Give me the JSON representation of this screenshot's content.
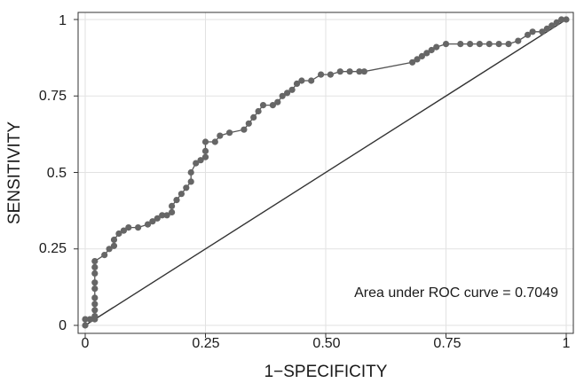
{
  "chart_data": {
    "type": "line",
    "xlabel": "1−SPECIFICITY",
    "ylabel": "SENSITIVITY",
    "xlim": [
      0,
      1
    ],
    "ylim": [
      0,
      1
    ],
    "x_ticks": [
      0,
      0.25,
      0.5,
      0.75,
      1
    ],
    "y_ticks": [
      0,
      0.25,
      0.5,
      0.75,
      1
    ],
    "x_tick_labels": [
      "0",
      "0.25",
      "0.50",
      "0.75",
      "1"
    ],
    "y_tick_labels": [
      "0",
      "0.25",
      "0.5",
      "0.75",
      "1"
    ],
    "grid": true,
    "annotation": "Area under ROC curve = 0.7049",
    "reference_line": [
      [
        0,
        0
      ],
      [
        1,
        1
      ]
    ],
    "series": [
      {
        "points": [
          [
            0,
            0
          ],
          [
            0,
            0.02
          ],
          [
            0.01,
            0.02
          ],
          [
            0.02,
            0.02
          ],
          [
            0.02,
            0.03
          ],
          [
            0.02,
            0.05
          ],
          [
            0.02,
            0.07
          ],
          [
            0.02,
            0.09
          ],
          [
            0.02,
            0.12
          ],
          [
            0.02,
            0.14
          ],
          [
            0.02,
            0.17
          ],
          [
            0.02,
            0.19
          ],
          [
            0.02,
            0.21
          ],
          [
            0.04,
            0.23
          ],
          [
            0.05,
            0.25
          ],
          [
            0.06,
            0.26
          ],
          [
            0.06,
            0.28
          ],
          [
            0.07,
            0.3
          ],
          [
            0.08,
            0.31
          ],
          [
            0.09,
            0.32
          ],
          [
            0.11,
            0.32
          ],
          [
            0.13,
            0.33
          ],
          [
            0.14,
            0.34
          ],
          [
            0.15,
            0.35
          ],
          [
            0.16,
            0.36
          ],
          [
            0.17,
            0.36
          ],
          [
            0.18,
            0.37
          ],
          [
            0.18,
            0.39
          ],
          [
            0.19,
            0.41
          ],
          [
            0.2,
            0.43
          ],
          [
            0.21,
            0.45
          ],
          [
            0.22,
            0.47
          ],
          [
            0.22,
            0.5
          ],
          [
            0.23,
            0.53
          ],
          [
            0.24,
            0.54
          ],
          [
            0.25,
            0.55
          ],
          [
            0.25,
            0.57
          ],
          [
            0.25,
            0.6
          ],
          [
            0.27,
            0.6
          ],
          [
            0.28,
            0.62
          ],
          [
            0.3,
            0.63
          ],
          [
            0.33,
            0.64
          ],
          [
            0.34,
            0.66
          ],
          [
            0.35,
            0.68
          ],
          [
            0.36,
            0.7
          ],
          [
            0.37,
            0.72
          ],
          [
            0.39,
            0.72
          ],
          [
            0.4,
            0.73
          ],
          [
            0.41,
            0.75
          ],
          [
            0.42,
            0.76
          ],
          [
            0.43,
            0.77
          ],
          [
            0.44,
            0.79
          ],
          [
            0.45,
            0.8
          ],
          [
            0.47,
            0.8
          ],
          [
            0.49,
            0.82
          ],
          [
            0.51,
            0.82
          ],
          [
            0.53,
            0.83
          ],
          [
            0.55,
            0.83
          ],
          [
            0.57,
            0.83
          ],
          [
            0.58,
            0.83
          ],
          [
            0.68,
            0.86
          ],
          [
            0.69,
            0.87
          ],
          [
            0.7,
            0.88
          ],
          [
            0.71,
            0.89
          ],
          [
            0.72,
            0.9
          ],
          [
            0.73,
            0.91
          ],
          [
            0.75,
            0.92
          ],
          [
            0.78,
            0.92
          ],
          [
            0.8,
            0.92
          ],
          [
            0.82,
            0.92
          ],
          [
            0.84,
            0.92
          ],
          [
            0.86,
            0.92
          ],
          [
            0.88,
            0.92
          ],
          [
            0.9,
            0.93
          ],
          [
            0.92,
            0.95
          ],
          [
            0.93,
            0.96
          ],
          [
            0.95,
            0.96
          ],
          [
            0.96,
            0.97
          ],
          [
            0.97,
            0.98
          ],
          [
            0.98,
            0.99
          ],
          [
            0.99,
            1.0
          ],
          [
            1,
            1
          ]
        ]
      }
    ]
  }
}
